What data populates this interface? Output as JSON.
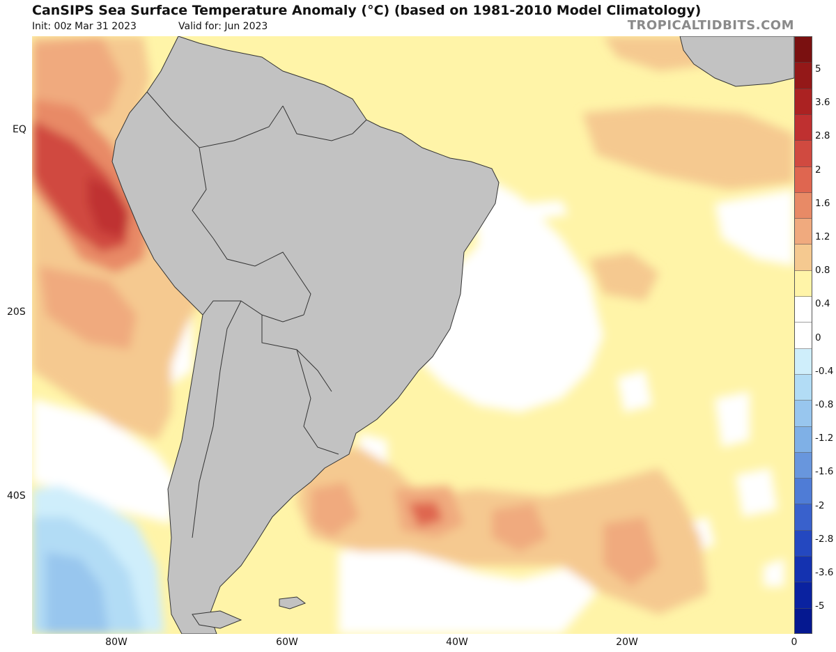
{
  "header": {
    "title": "CanSIPS Sea Surface Temperature Anomaly (°C) (based on 1981-2010 Model Climatology)",
    "init": "Init: 00z Mar 31 2023",
    "valid": "Valid for: Jun 2023",
    "brand": "TROPICALTIDBITS.COM"
  },
  "map": {
    "lat_labels": [
      "EQ",
      "20S",
      "40S"
    ],
    "lon_labels": [
      "80W",
      "60W",
      "40W",
      "20W",
      "0"
    ],
    "land_color": "#c2c2c2",
    "ocean_neutral_color": "#ffffff"
  },
  "colorbar": {
    "labels": [
      "5",
      "3.6",
      "2.8",
      "2",
      "1.6",
      "1.2",
      "0.8",
      "0.4",
      "0",
      "-0.4",
      "-0.8",
      "-1.2",
      "-1.6",
      "-2",
      "-2.8",
      "-3.6",
      "-5"
    ],
    "colors": [
      "#7a1010",
      "#941818",
      "#ab2222",
      "#bf3030",
      "#d04a40",
      "#df6650",
      "#e88a66",
      "#f0aa7e",
      "#f5c990",
      "#fff4a8",
      "#ffffff",
      "#ffffff",
      "#cfeefb",
      "#b2dcf5",
      "#98c6ee",
      "#7fb0e6",
      "#6896dd",
      "#4f7cd6",
      "#3961cc",
      "#2448c0",
      "#1432b0",
      "#0a22a0",
      "#051890"
    ]
  }
}
